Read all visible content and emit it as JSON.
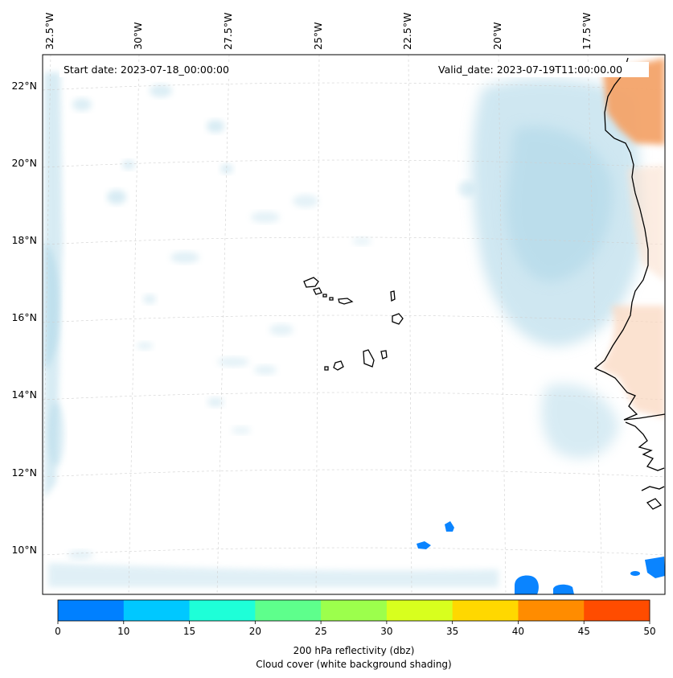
{
  "header": {
    "start_date": "Start date: 2023-07-18_00:00:00",
    "valid_date": "Valid_date: 2023-07-19T11:00:00.00"
  },
  "longitude_labels": [
    "32.5°W",
    "30°W",
    "27.5°W",
    "25°W",
    "22.5°W",
    "20°W",
    "17.5°W"
  ],
  "latitude_labels": [
    "22°N",
    "20°N",
    "18°N",
    "16°N",
    "14°N",
    "12°N",
    "10°N"
  ],
  "colorbar": {
    "ticks": [
      "0",
      "10",
      "15",
      "20",
      "25",
      "30",
      "35",
      "40",
      "45",
      "50"
    ],
    "colors": [
      "#0080ff",
      "#00c8ff",
      "#1effd8",
      "#5eff8c",
      "#9cff4c",
      "#d8ff1e",
      "#ffd800",
      "#ff8c00",
      "#ff4c00"
    ],
    "label_line1": "200 hPa reflectivity (dbz)",
    "label_line2": "Cloud cover (white background shading)"
  },
  "colors": {
    "cloud": "#a8d4e6",
    "land_warm": "#f4a46a",
    "reflectivity_low": "#0a84ff",
    "coast": "#000000"
  }
}
